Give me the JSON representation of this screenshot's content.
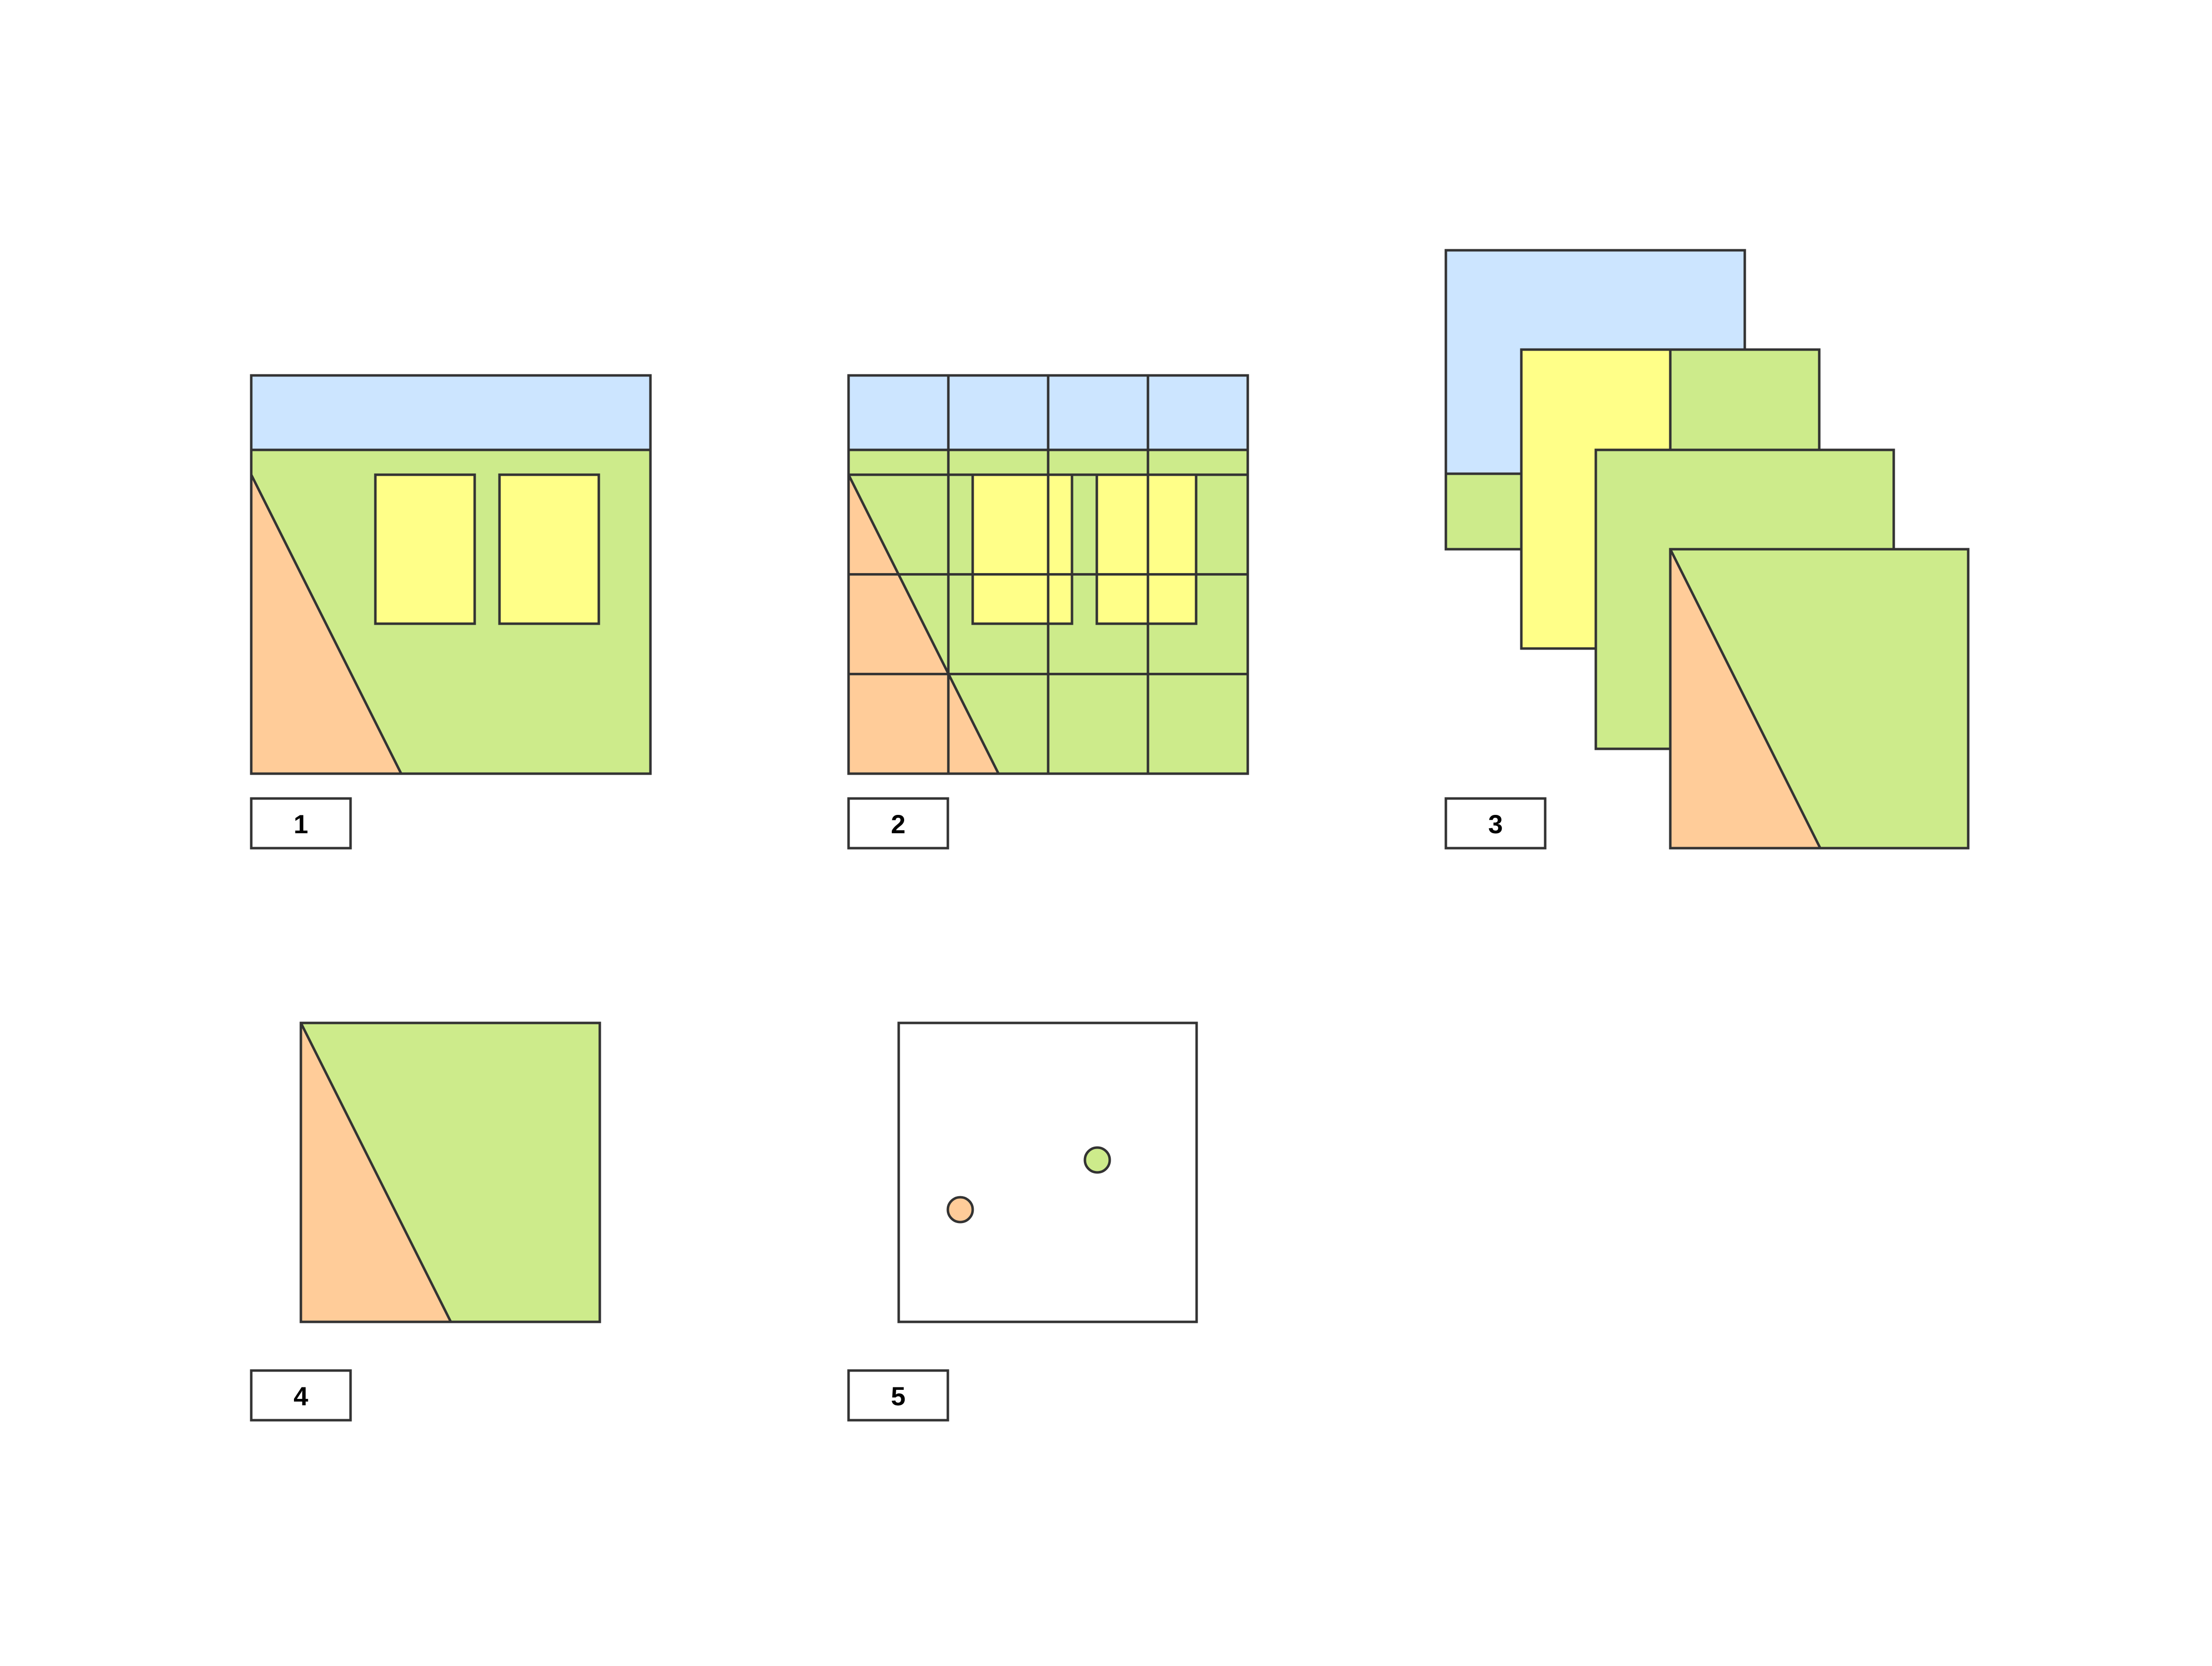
{
  "colors": {
    "sky": "#cce5ff",
    "ground": "#cdeb8b",
    "window": "#ffff88",
    "road": "#ffcc99",
    "stroke": "#333333",
    "label_box": "#ffffff"
  },
  "panels": {
    "p1": {
      "label": "1"
    },
    "p2": {
      "label": "2"
    },
    "p3": {
      "label": "3"
    },
    "p4": {
      "label": "4"
    },
    "p5": {
      "label": "5"
    }
  },
  "panel_2_grid": {
    "columns": 4,
    "rows": 4
  },
  "panel_3_layer_count": 4,
  "panel_5_points": [
    {
      "name": "road-point",
      "color": "road"
    },
    {
      "name": "ground-point",
      "color": "ground"
    }
  ]
}
